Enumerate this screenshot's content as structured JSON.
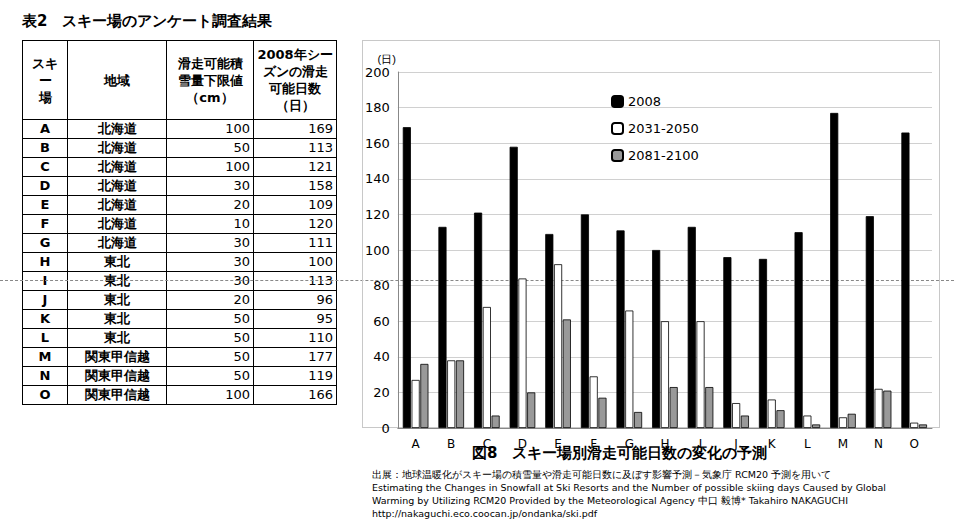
{
  "table": {
    "title": "表2　スキー場のアンケート調査結果",
    "header": [
      "スキー\n場",
      "地域",
      "滑走可能積\n雪量下限値\n（cm）",
      "2008年シー\nズンの滑走\n可能日数\n（日）"
    ],
    "rows": [
      [
        "A",
        "北海道",
        100,
        169
      ],
      [
        "B",
        "北海道",
        50,
        113
      ],
      [
        "C",
        "北海道",
        100,
        121
      ],
      [
        "D",
        "北海道",
        30,
        158
      ],
      [
        "E",
        "北海道",
        20,
        109
      ],
      [
        "F",
        "北海道",
        10,
        120
      ],
      [
        "G",
        "北海道",
        30,
        111
      ],
      [
        "H",
        "東北",
        30,
        100
      ],
      [
        "I",
        "東北",
        30,
        113
      ],
      [
        "J",
        "東北",
        20,
        96
      ],
      [
        "K",
        "東北",
        50,
        95
      ],
      [
        "L",
        "東北",
        50,
        110
      ],
      [
        "M",
        "関東甲信越",
        50,
        177
      ],
      [
        "N",
        "関東甲信越",
        50,
        119
      ],
      [
        "O",
        "関東甲信越",
        100,
        166
      ]
    ]
  },
  "chart_data": {
    "type": "bar",
    "title": "図8　スキー場別滑走可能日数の変化の予測",
    "y_label": "(日)",
    "categories": [
      "A",
      "B",
      "C",
      "D",
      "E",
      "F",
      "G",
      "H",
      "I",
      "J",
      "K",
      "L",
      "M",
      "N",
      "O"
    ],
    "series": [
      {
        "name": "2008",
        "color": "#000000",
        "values": [
          169,
          113,
          121,
          158,
          109,
          120,
          111,
          100,
          113,
          96,
          95,
          110,
          177,
          119,
          166
        ]
      },
      {
        "name": "2031-2050",
        "color": "#ffffff",
        "values": [
          27,
          38,
          68,
          84,
          92,
          29,
          66,
          60,
          60,
          14,
          16,
          7,
          6,
          22,
          3
        ]
      },
      {
        "name": "2081-2100",
        "color": "#999999",
        "values": [
          36,
          38,
          7,
          20,
          61,
          17,
          9,
          23,
          23,
          7,
          10,
          2,
          8,
          21,
          2
        ]
      }
    ],
    "ylim": [
      0,
      200
    ],
    "yticks": [
      0,
      20,
      40,
      60,
      80,
      100,
      120,
      140,
      160,
      180,
      200
    ],
    "grid": true,
    "legend": "top-right"
  },
  "source": [
    "出展：地球温暖化がスキー場の積雪量や滑走可能日数に及ぼす影響予測－気象庁 RCM20 予測を用いて",
    "Estimating the Changes in Snowfall at Ski Resorts and the Number of possible skiing days Caused by Global",
    "Warming by Utilizing RCM20 Provided by the Meteorological Agency 中口 毅博* Takahiro NAKAGUCHI",
    "http://nakaguchi.eco.coocan.jp/ondanka/ski.pdf"
  ]
}
